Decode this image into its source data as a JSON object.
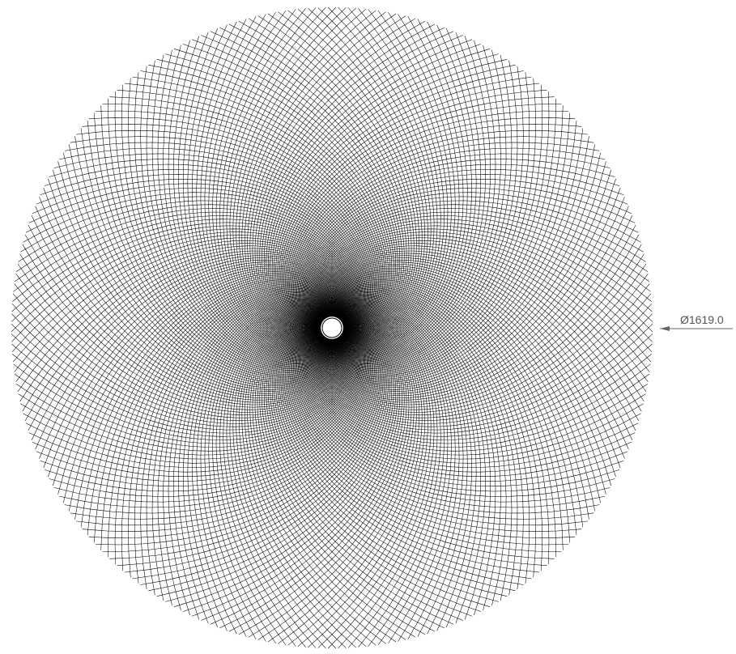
{
  "dimension": {
    "label": "Ø1619.0"
  }
}
